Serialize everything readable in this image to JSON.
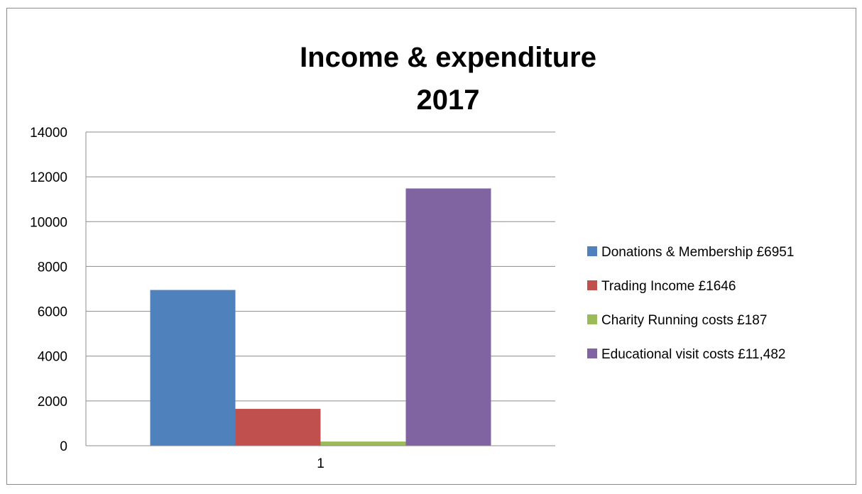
{
  "chart_data": {
    "type": "bar",
    "title_lines": [
      "Income & expenditure",
      "2017"
    ],
    "categories": [
      "1"
    ],
    "series": [
      {
        "name": "Donations & Membership £6951",
        "values": [
          6951
        ],
        "color": "#4F81BD"
      },
      {
        "name": "Trading Income £1646",
        "values": [
          1646
        ],
        "color": "#C0504D"
      },
      {
        "name": "Charity Running costs £187",
        "values": [
          187
        ],
        "color": "#9BBB59"
      },
      {
        "name": "Educational visit costs £11,482",
        "values": [
          11482
        ],
        "color": "#8064A2"
      }
    ],
    "ylim": [
      0,
      14000
    ],
    "yticks": [
      "0",
      "2000",
      "4000",
      "6000",
      "8000",
      "10000",
      "12000",
      "14000"
    ],
    "grid": true,
    "legend_position": "right"
  }
}
